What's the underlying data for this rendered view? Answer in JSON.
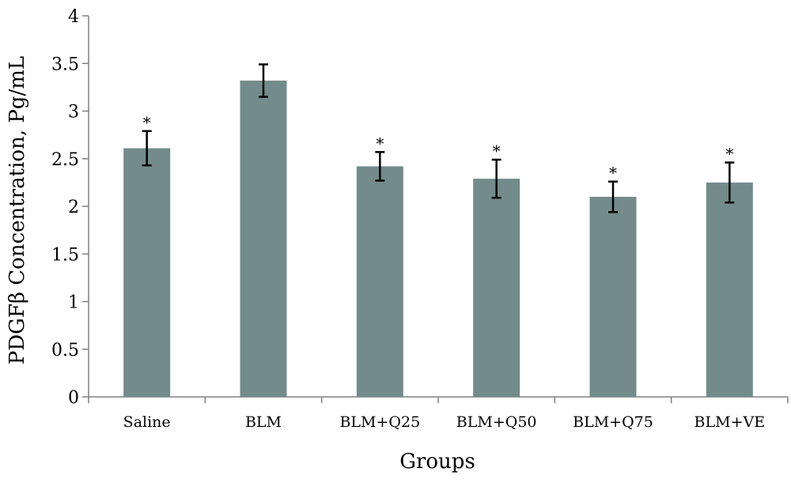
{
  "chart_data": {
    "type": "bar",
    "title": "",
    "xlabel": "Groups",
    "ylabel": "PDGFβ Concentration, Pg/mL",
    "categories": [
      "Saline",
      "BLM",
      "BLM+Q25",
      "BLM+Q50",
      "BLM+Q75",
      "BLM+VE"
    ],
    "values": [
      2.61,
      3.32,
      2.42,
      2.29,
      2.1,
      2.25
    ],
    "errors": [
      0.18,
      0.17,
      0.15,
      0.2,
      0.16,
      0.21
    ],
    "significance": [
      "*",
      "",
      "*",
      "*",
      "*",
      "*"
    ],
    "ylim": [
      0,
      4
    ],
    "yticks": [
      "0",
      "0.5",
      "1",
      "1.5",
      "2",
      "2.5",
      "3",
      "3.5",
      "4"
    ],
    "ytick_values": [
      0,
      0.5,
      1,
      1.5,
      2,
      2.5,
      3,
      3.5,
      4
    ],
    "grid": false,
    "legend": "none",
    "bar_color": "#738b8b",
    "axis_color": "#808080",
    "error_bar_color": "#000000"
  }
}
